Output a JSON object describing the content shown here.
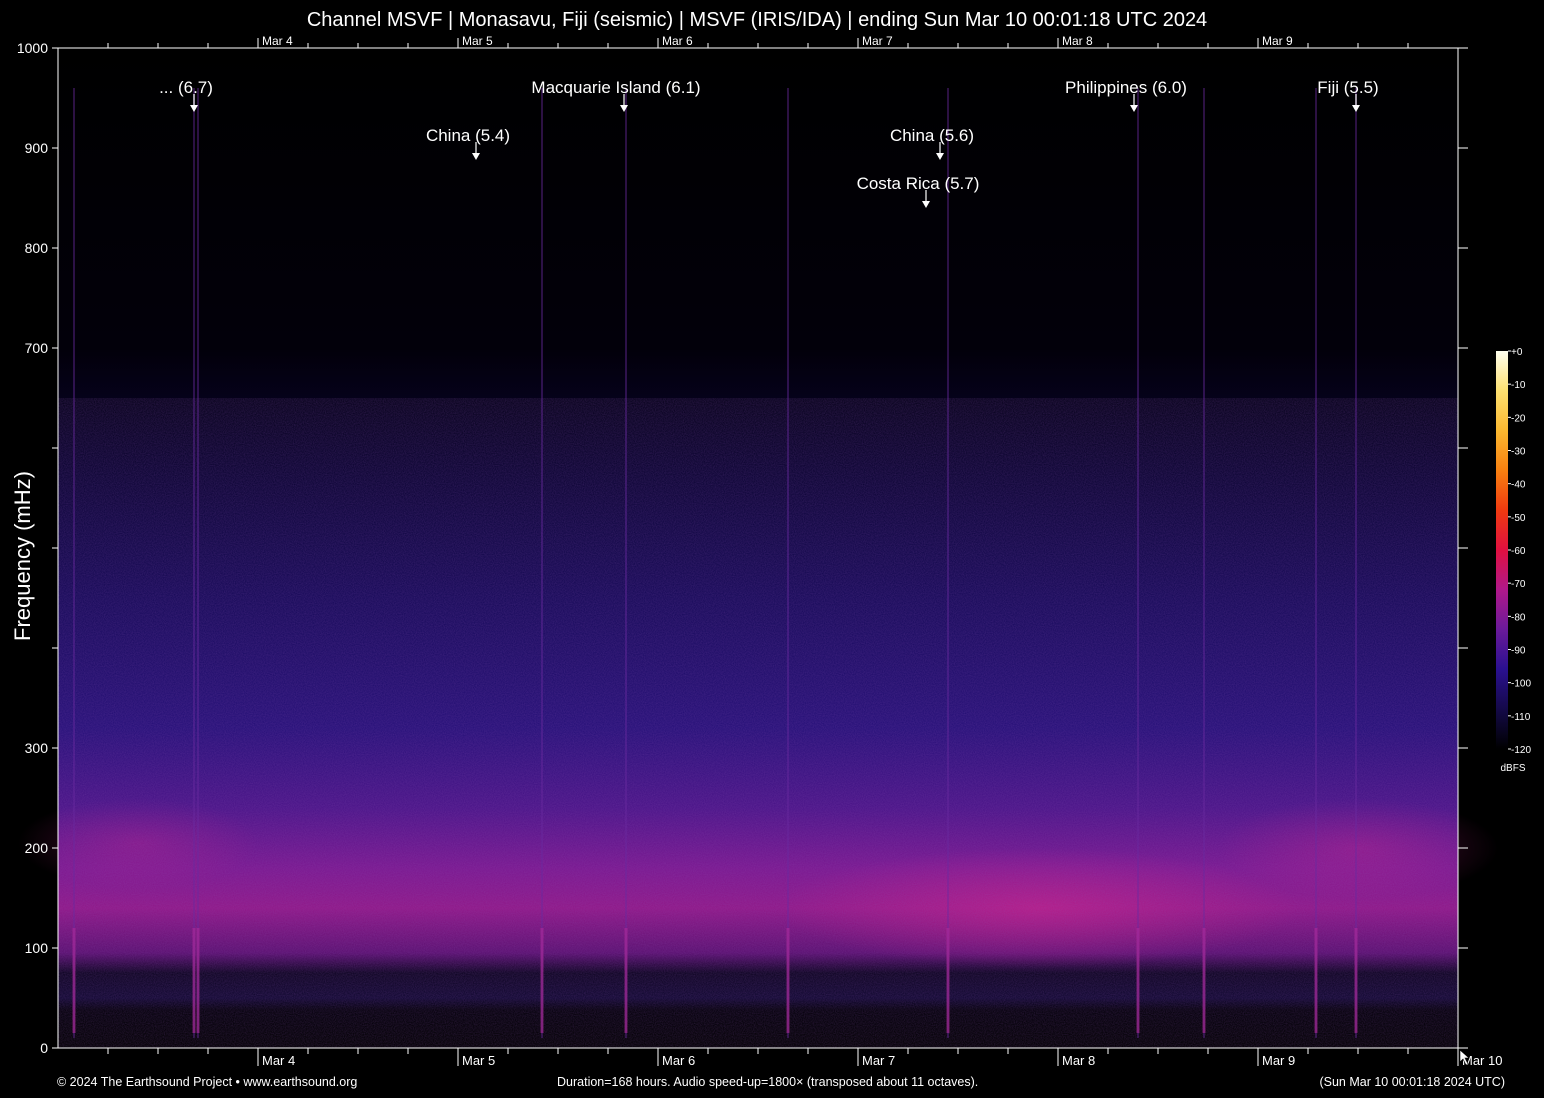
{
  "title": "Channel MSVF | Monasavu, Fiji (seismic) | MSVF (IRIS/IDA) | ending Sun Mar 10 00:01:18 UTC 2024",
  "footer": {
    "left": "© 2024 The Earthsound Project • www.earthsound.org",
    "center": "Duration=168 hours. Audio speed-up=1800× (transposed about 11 octaves).",
    "right": "(Sun Mar 10 00:01:18 2024 UTC)"
  },
  "chart_data": {
    "type": "heatmap",
    "title": "Channel MSVF | Monasavu, Fiji (seismic) | MSVF (IRIS/IDA) | ending Sun Mar 10 00:01:18 UTC 2024",
    "xlabel": "",
    "ylabel": "Frequency (mHz)",
    "x_unit": "days",
    "xlim": [
      "Mar 3 00:01",
      "Mar 10 00:01"
    ],
    "ylim": [
      0,
      1000
    ],
    "ytick_labels": [
      "0",
      "100",
      "200",
      "300",
      "",
      "",
      "",
      "700",
      "800",
      "900",
      "1000"
    ],
    "ytick_values": [
      0,
      100,
      200,
      300,
      400,
      500,
      600,
      700,
      800,
      900,
      1000
    ],
    "xtick_labels": [
      "Mar 4",
      "Mar 5",
      "Mar 6",
      "Mar 7",
      "Mar 8",
      "Mar 9",
      "Mar 10"
    ],
    "xtick_values": [
      1,
      2,
      3,
      4,
      5,
      6,
      7
    ],
    "colorbar": {
      "label": "dBFS",
      "ticks": [
        "+0",
        "-10",
        "-20",
        "-30",
        "-40",
        "-50",
        "-60",
        "-70",
        "-80",
        "-90",
        "-100",
        "-110",
        "-120"
      ],
      "range": [
        -120,
        0
      ],
      "colors": [
        "#000000",
        "#1a0a4a",
        "#3a1090",
        "#7a1a9a",
        "#c01880",
        "#e01050",
        "#f03020",
        "#f87010",
        "#fbb020",
        "#fde060",
        "#fffff0"
      ]
    },
    "background_band": {
      "description_values": "energy concentrated roughly 100-300 mHz, strongest near day 4.5-5.5",
      "center_mhz": [
        200,
        190,
        160,
        140,
        125,
        130,
        145,
        160,
        175,
        190,
        195
      ],
      "x_days": [
        0,
        0.5,
        1.5,
        2.5,
        3.5,
        4.0,
        4.7,
        5.3,
        6.0,
        6.5,
        7.0
      ]
    },
    "events": [
      {
        "label": "... (6.7)",
        "day": 0.68,
        "row": 0
      },
      {
        "label": "Macquarie Island (6.1)",
        "day": 2.83,
        "row": 0
      },
      {
        "label": "China (5.4)",
        "day": 2.09,
        "row": 1
      },
      {
        "label": "China (5.6)",
        "day": 4.41,
        "row": 1
      },
      {
        "label": "Costa Rica (5.7)",
        "day": 4.34,
        "row": 2
      },
      {
        "label": "Philippines (6.0)",
        "day": 5.38,
        "row": 0
      },
      {
        "label": "Fiji (5.5)",
        "day": 6.49,
        "row": 0
      }
    ],
    "event_streaks_days": [
      0.08,
      0.68,
      0.7,
      2.42,
      2.84,
      3.65,
      4.45,
      5.4,
      5.73,
      6.29,
      6.49
    ]
  }
}
